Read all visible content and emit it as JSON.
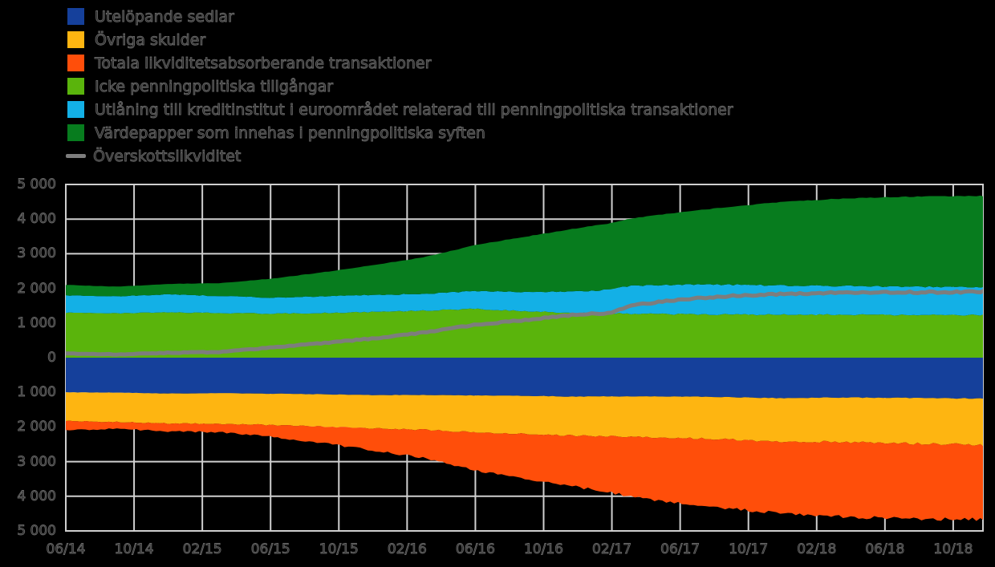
{
  "legend": {
    "items": [
      {
        "label": "Utelöpande sedlar",
        "color": "#15409b",
        "swatch": "box"
      },
      {
        "label": "Övriga skulder",
        "color": "#feb511",
        "swatch": "box"
      },
      {
        "label": "Totala likviditetsabsorberande transaktioner",
        "color": "#ff4e0a",
        "swatch": "box"
      },
      {
        "label": "Icke penningpolitiska tillgångar",
        "color": "#5ab40c",
        "swatch": "box"
      },
      {
        "label": "Utlåning till kreditinstitut i euroområdet relaterad till penningpolitiska transaktioner",
        "color": "#13b0e6",
        "swatch": "box"
      },
      {
        "label": "Värdepapper som innehas i penningpolitiska syften",
        "color": "#077c1e",
        "swatch": "box"
      },
      {
        "label": "Överskottslikviditet",
        "color": "#7d7d7d",
        "swatch": "line"
      }
    ]
  },
  "chart_data": {
    "type": "area",
    "stacked": true,
    "title": "",
    "xlabel": "",
    "ylabel": "",
    "ylim": [
      -5000,
      5000
    ],
    "grid": true,
    "legend_position": "top-left",
    "background_color": "#000000",
    "gridline_color": "#cfcfcf",
    "x_tick_labels": [
      "06/14",
      "10/14",
      "02/15",
      "06/15",
      "10/15",
      "02/16",
      "06/16",
      "10/16",
      "02/17",
      "06/17",
      "10/17",
      "02/18",
      "06/18",
      "10/18"
    ],
    "y_tick_labels": [
      "5 000",
      "4 000",
      "3 000",
      "2 000",
      "1 000",
      "0",
      "1 000",
      "2 000",
      "3 000",
      "4 000",
      "5 000"
    ],
    "y_tick_values": [
      5000,
      4000,
      3000,
      2000,
      1000,
      0,
      -1000,
      -2000,
      -3000,
      -4000,
      -5000
    ],
    "x_months_start_label": "06/14",
    "anchor_months": [
      0,
      3,
      6,
      9,
      12,
      15,
      18,
      21,
      24,
      27,
      30,
      32,
      33,
      36,
      39,
      42,
      45,
      48,
      51,
      54
    ],
    "series": [
      {
        "name": "Icke penningpolitiska tillgångar",
        "side": "positive",
        "color": "#5ab40c",
        "jitter": 28,
        "values": [
          1300,
          1280,
          1310,
          1290,
          1270,
          1290,
          1320,
          1360,
          1410,
          1340,
          1290,
          1280,
          1270,
          1250,
          1245,
          1240,
          1240,
          1235,
          1230,
          1230
        ]
      },
      {
        "name": "Utlåning till kreditinstitut i euroområdet relaterad till penningpolitiska transaktioner",
        "side": "positive",
        "color": "#13b0e6",
        "jitter": 26,
        "values": [
          500,
          490,
          515,
          490,
          465,
          480,
          490,
          480,
          510,
          555,
          620,
          690,
          800,
          860,
          860,
          845,
          835,
          825,
          815,
          810
        ]
      },
      {
        "name": "Värdepapper som innehas i penningpolitiska syften",
        "side": "positive",
        "color": "#077c1e",
        "jitter": 12,
        "values": [
          300,
          280,
          305,
          370,
          545,
          690,
          860,
          1060,
          1330,
          1605,
          1830,
          1920,
          1940,
          2090,
          2255,
          2415,
          2505,
          2570,
          2615,
          2630
        ]
      },
      {
        "name": "Utelöpande sedlar",
        "side": "negative",
        "color": "#15409b",
        "jitter": 12,
        "values": [
          1000,
          1010,
          1035,
          1025,
          1040,
          1055,
          1080,
          1075,
          1090,
          1100,
          1125,
          1115,
          1118,
          1125,
          1140,
          1170,
          1150,
          1160,
          1170,
          1180
        ]
      },
      {
        "name": "Övriga skulder",
        "side": "negative",
        "color": "#feb511",
        "jitter": 38,
        "values": [
          830,
          845,
          865,
          885,
          905,
          935,
          965,
          1005,
          1060,
          1100,
          1130,
          1150,
          1160,
          1195,
          1225,
          1250,
          1275,
          1300,
          1320,
          1340
        ]
      },
      {
        "name": "Totala likviditetsabsorberande transaktioner",
        "side": "negative",
        "color": "#ff4e0a",
        "jitter": 55,
        "values": [
          270,
          195,
          230,
          240,
          335,
          470,
          625,
          820,
          1100,
          1300,
          1485,
          1625,
          1732,
          1880,
          1995,
          2080,
          2155,
          2170,
          2170,
          2150
        ]
      }
    ],
    "line_series": {
      "name": "Överskottslikviditet",
      "color": "#7d7d7d",
      "width": 5,
      "jitter": 26,
      "values": [
        120,
        95,
        140,
        165,
        290,
        420,
        555,
        725,
        950,
        1090,
        1250,
        1290,
        1500,
        1680,
        1780,
        1840,
        1870,
        1880,
        1890,
        1900
      ]
    }
  }
}
